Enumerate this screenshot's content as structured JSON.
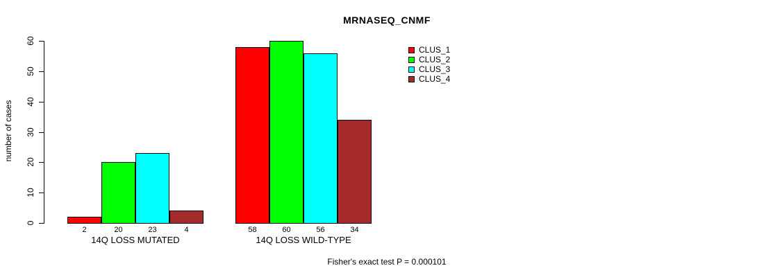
{
  "title": "MRNASEQ_CNMF",
  "footnote": "Fisher's exact test P = 0.000101",
  "chart_data": {
    "type": "bar",
    "title": "MRNASEQ_CNMF",
    "xlabel": "",
    "ylabel": "number of cases",
    "categories": [
      "14Q LOSS MUTATED",
      "14Q LOSS WILD-TYPE"
    ],
    "series": [
      {
        "name": "CLUS_1",
        "color": "#ff0000",
        "values": [
          2,
          58
        ]
      },
      {
        "name": "CLUS_2",
        "color": "#00ff00",
        "values": [
          20,
          60
        ]
      },
      {
        "name": "CLUS_3",
        "color": "#00ffff",
        "values": [
          23,
          56
        ]
      },
      {
        "name": "CLUS_4",
        "color": "#a52a2a",
        "values": [
          4,
          34
        ]
      }
    ],
    "yticks": [
      0,
      10,
      20,
      30,
      40,
      50,
      60
    ],
    "ylim": [
      0,
      60
    ],
    "grid": false,
    "bar_value_labels": true,
    "bar_border_color": "#000000",
    "legend_position": "top-right",
    "annotation": "Fisher's exact test P = 0.000101"
  }
}
